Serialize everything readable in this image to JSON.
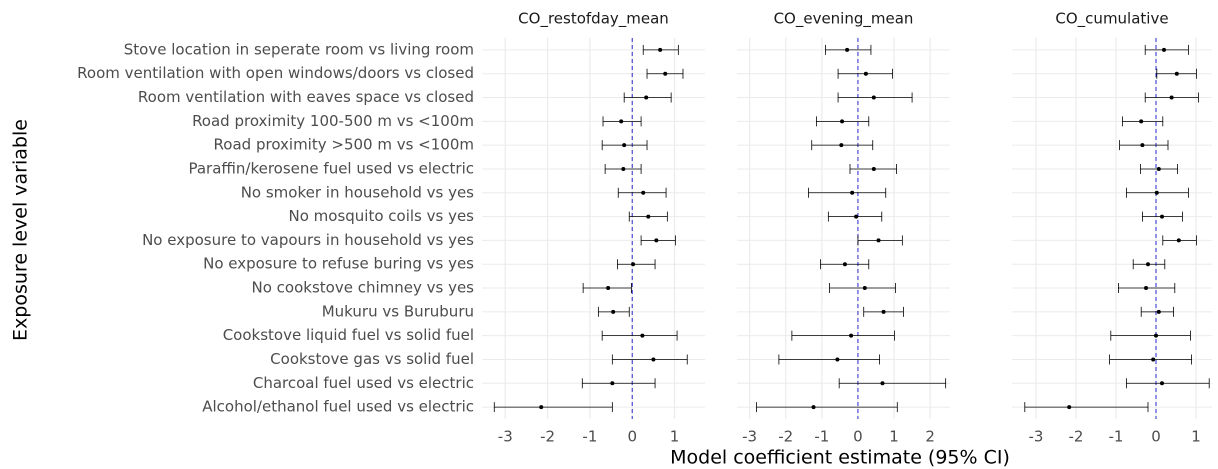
{
  "chart_data": {
    "type": "forest",
    "xlabel": "Model coefficient estimate (95% CI)",
    "ylabel": "Exposure level variable",
    "grid": true,
    "reference_x": 0,
    "reference_color": "#2b2bd1",
    "point_color": "#000000",
    "categories": [
      "Stove location in seperate room vs living room",
      "Room ventilation with open windows/doors vs closed",
      "Room ventilation with eaves space vs closed",
      "Road proximity 100-500 m vs <100m",
      "Road proximity >500 m vs <100m",
      "Paraffin/kerosene fuel used vs electric",
      "No smoker in household vs yes",
      "No mosquito coils vs yes",
      "No exposure to vapours in household vs yes",
      "No exposure to refuse buring vs yes",
      "No cookstove chimney vs yes",
      "Mukuru vs Buruburu",
      "Cookstove liquid fuel vs solid fuel",
      "Cookstove gas vs solid fuel",
      "Charcoal fuel used vs electric",
      "Alcohol/ethanol fuel used vs electric"
    ],
    "panels": [
      {
        "title": "CO_restofday_mean",
        "xlim": [
          -3.55,
          1.72
        ],
        "xticks": [
          -3,
          -2,
          -1,
          0,
          1
        ],
        "values": [
          0.66,
          0.78,
          0.33,
          -0.26,
          -0.19,
          -0.21,
          0.26,
          0.38,
          0.57,
          0.02,
          -0.57,
          -0.45,
          0.24,
          0.5,
          -0.47,
          -2.15
        ],
        "lower": [
          0.26,
          0.35,
          -0.19,
          -0.69,
          -0.71,
          -0.64,
          -0.33,
          -0.07,
          0.21,
          -0.35,
          -1.16,
          -0.8,
          -0.71,
          -0.47,
          -1.18,
          -3.26
        ],
        "upper": [
          1.09,
          1.2,
          0.92,
          0.21,
          0.35,
          0.21,
          0.8,
          0.83,
          1.02,
          0.54,
          -0.02,
          -0.07,
          1.06,
          1.3,
          0.54,
          -0.47
        ]
      },
      {
        "title": "CO_evening_mean",
        "xlim": [
          -3.35,
          2.55
        ],
        "xticks": [
          -3,
          -2,
          -1,
          0,
          1,
          2
        ],
        "values": [
          -0.3,
          0.22,
          0.44,
          -0.44,
          -0.46,
          0.44,
          -0.16,
          -0.05,
          0.57,
          -0.36,
          0.19,
          0.71,
          -0.19,
          -0.57,
          0.68,
          -1.23
        ],
        "lower": [
          -0.9,
          -0.55,
          -0.55,
          -1.15,
          -1.28,
          -0.22,
          -1.37,
          -0.82,
          0,
          -1.04,
          -0.79,
          0.16,
          -1.83,
          -2.19,
          -0.52,
          -2.81
        ],
        "upper": [
          0.36,
          0.96,
          1.5,
          0.3,
          0.41,
          1.07,
          0.77,
          0.66,
          1.23,
          0.3,
          1.04,
          1.26,
          1.01,
          0.6,
          2.43,
          1.09
        ]
      },
      {
        "title": "CO_cumulative",
        "xlim": [
          -3.6,
          1.4
        ],
        "xticks": [
          -3,
          -2,
          -1,
          0,
          1
        ],
        "values": [
          0.2,
          0.52,
          0.39,
          -0.37,
          -0.34,
          0.07,
          0.02,
          0.15,
          0.57,
          -0.2,
          -0.25,
          0.07,
          0,
          -0.07,
          0.15,
          -2.17
        ],
        "lower": [
          -0.27,
          0.02,
          -0.27,
          -0.84,
          -0.91,
          -0.39,
          -0.74,
          -0.34,
          0.17,
          -0.57,
          -0.94,
          -0.37,
          -1.13,
          -1.16,
          -0.74,
          -3.28
        ],
        "upper": [
          0.81,
          1.01,
          1.06,
          0.17,
          0.3,
          0.54,
          0.81,
          0.66,
          1.01,
          0.22,
          0.47,
          0.44,
          0.86,
          0.89,
          1.33,
          -0.2
        ]
      }
    ]
  }
}
